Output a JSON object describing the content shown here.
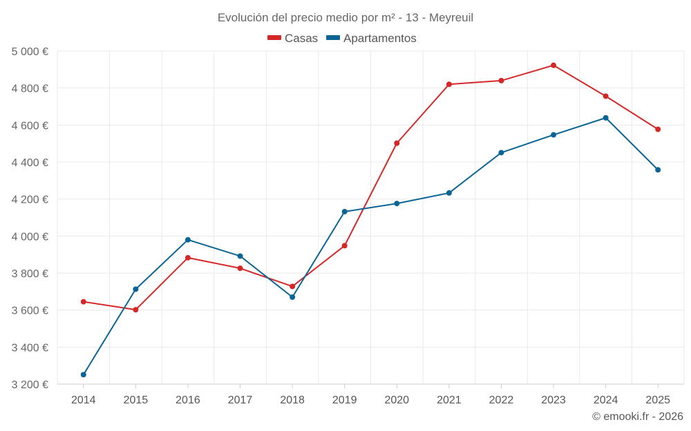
{
  "chart_data": {
    "type": "line",
    "title": "Evolución del precio medio por m² - 13 - Meyreuil",
    "categories": [
      "2014",
      "2015",
      "2016",
      "2017",
      "2018",
      "2019",
      "2020",
      "2021",
      "2022",
      "2023",
      "2024",
      "2025"
    ],
    "series": [
      {
        "name": "Casas",
        "color": "#d62728",
        "values": [
          3645,
          3602,
          3883,
          3826,
          3728,
          3948,
          4502,
          4820,
          4840,
          4923,
          4756,
          4577
        ]
      },
      {
        "name": "Apartamentos",
        "color": "#0a6496",
        "values": [
          3251,
          3713,
          3980,
          3892,
          3670,
          4132,
          4176,
          4233,
          4451,
          4547,
          4639,
          4358
        ]
      }
    ],
    "ylim": [
      3200,
      5000
    ],
    "yticks": [
      3200,
      3400,
      3600,
      3800,
      4000,
      4200,
      4400,
      4600,
      4800,
      5000
    ],
    "ytick_labels": [
      "3 200 €",
      "3 400 €",
      "3 600 €",
      "3 800 €",
      "4 000 €",
      "4 200 €",
      "4 400 €",
      "4 600 €",
      "4 800 €",
      "5 000 €"
    ],
    "xlabel": "",
    "ylabel": "",
    "legend_position": "top-center",
    "grid": true,
    "credit": "© emooki.fr - 2026"
  }
}
